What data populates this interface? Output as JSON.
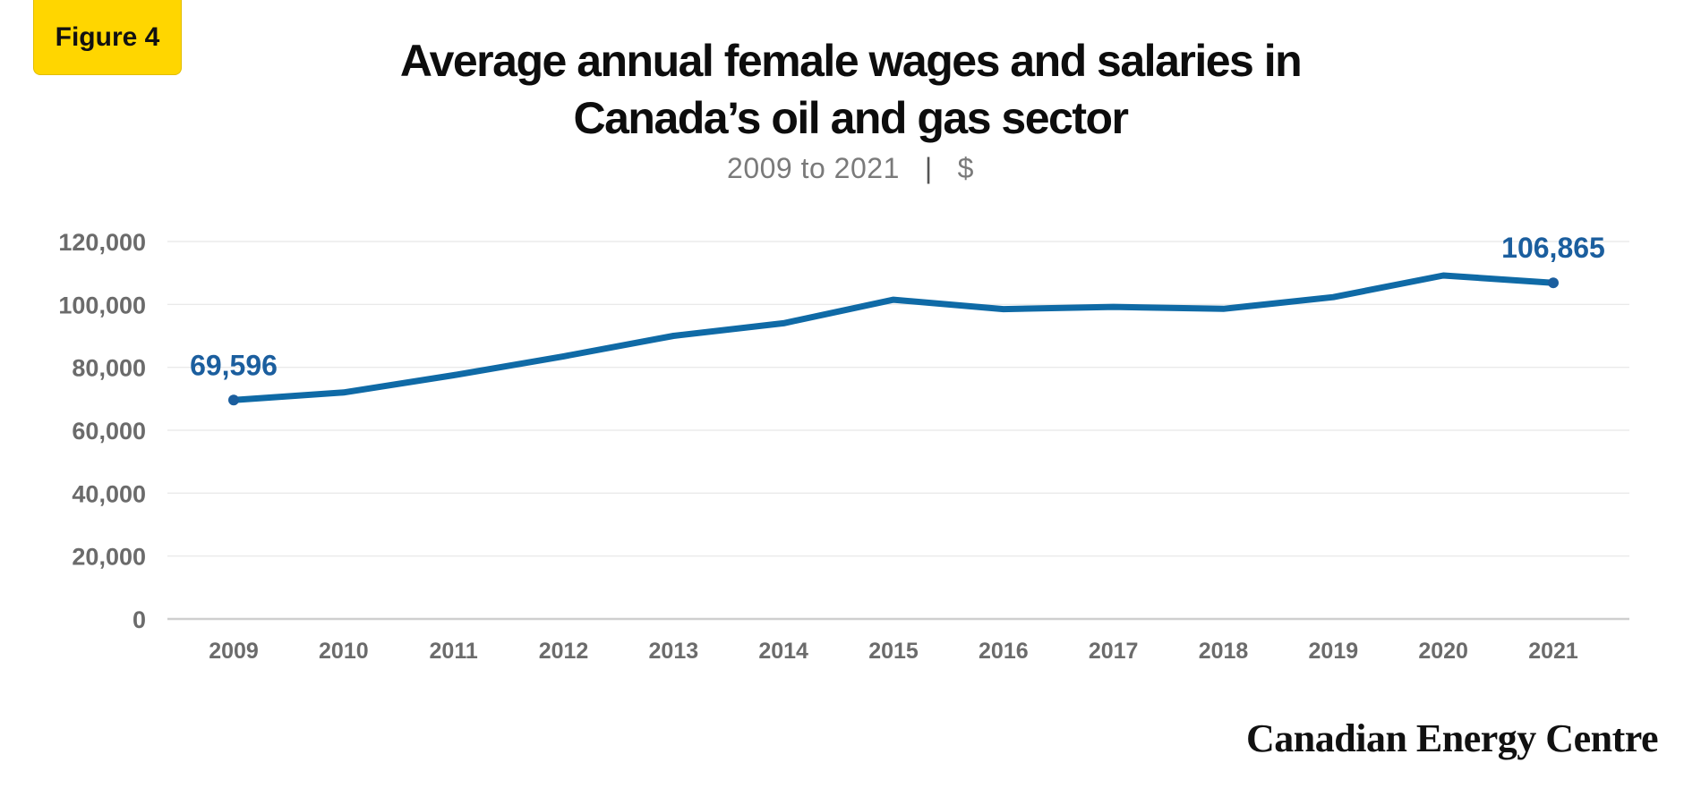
{
  "figure_label": "Figure 4",
  "title_line1": "Average annual female wages and salaries in",
  "title_line2": "Canada’s oil and gas sector",
  "subtitle_range": "2009 to 2021",
  "subtitle_sep": "|",
  "subtitle_unit": "$",
  "brand": "Canadian Energy Centre",
  "colors": {
    "line": "#0F6AA6",
    "label": "#1B5E9E",
    "axis_text": "#6b6b6b",
    "grid": "#e6e6e6",
    "baseline": "#cfcfcf"
  },
  "chart_data": {
    "type": "line",
    "title": "Average annual female wages and salaries in Canada’s oil and gas sector",
    "subtitle": "2009 to 2021 | $",
    "x": [
      "2009",
      "2010",
      "2011",
      "2012",
      "2013",
      "2014",
      "2015",
      "2016",
      "2017",
      "2018",
      "2019",
      "2020",
      "2021"
    ],
    "series": [
      {
        "values": [
          69596,
          72000,
          77500,
          83500,
          90000,
          94000,
          101500,
          98500,
          99200,
          98600,
          102300,
          109200,
          106865
        ]
      }
    ],
    "data_labels": [
      {
        "index": 0,
        "text": "69,596"
      },
      {
        "index": 12,
        "text": "106,865"
      }
    ],
    "ylim": [
      0,
      120000
    ],
    "yticks": [
      0,
      20000,
      40000,
      60000,
      80000,
      100000,
      120000
    ],
    "ytick_labels": [
      "0",
      "20,000",
      "40,000",
      "60,000",
      "80,000",
      "100,000",
      "120,000"
    ],
    "grid": true,
    "legend": "none"
  }
}
